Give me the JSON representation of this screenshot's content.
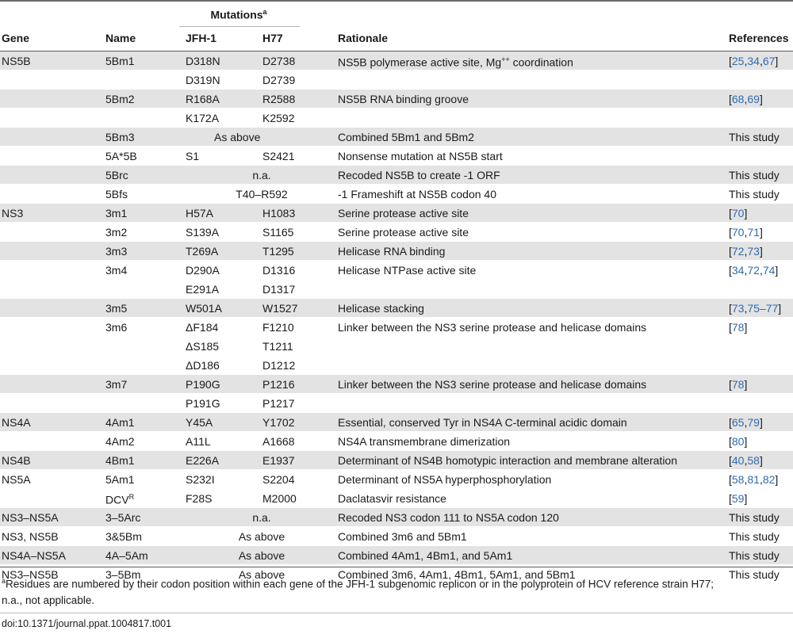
{
  "headers": {
    "mutations": "Mutations",
    "mutations_note": "a",
    "gene": "Gene",
    "name": "Name",
    "jfh1": "JFH-1",
    "h77": "H77",
    "rationale": "Rationale",
    "references": "References"
  },
  "rows": [
    {
      "shade": true,
      "gene": "NS5B",
      "name": "5Bm1",
      "jfh1": "D318N",
      "h77": "D2738",
      "rationale": "NS5B polymerase active site, Mg",
      "rationale_sup": "++",
      "rationale_tail": " coordination",
      "refs": [
        "25",
        "34",
        "67"
      ]
    },
    {
      "shade": false,
      "gene": "",
      "name": "",
      "jfh1": "D319N",
      "h77": "D2739",
      "rationale": "",
      "refs": []
    },
    {
      "shade": true,
      "gene": "",
      "name": "5Bm2",
      "jfh1": "R168A",
      "h77": "R2588",
      "rationale": "NS5B RNA binding groove",
      "refs": [
        "68",
        "69"
      ]
    },
    {
      "shade": false,
      "gene": "",
      "name": "",
      "jfh1": "K172A",
      "h77": "K2592",
      "rationale": "",
      "refs": []
    },
    {
      "shade": true,
      "gene": "",
      "name": "5Bm3",
      "span": "As above",
      "span_pos": "left",
      "rationale": "Combined 5Bm1 and 5Bm2",
      "ref_text": "This study"
    },
    {
      "shade": false,
      "gene": "",
      "name": "5A*5B",
      "jfh1": "S1",
      "h77": "S2421",
      "rationale": "Nonsense mutation at NS5B start",
      "refs": []
    },
    {
      "shade": true,
      "gene": "",
      "name": "5Brc",
      "span": "n.a.",
      "span_pos": "center",
      "rationale": "Recoded NS5B to create -1 ORF",
      "ref_text": "This study"
    },
    {
      "shade": false,
      "gene": "",
      "name": "5Bfs",
      "span": "T40–R592",
      "span_pos": "center",
      "rationale": "-1 Frameshift at NS5B codon 40",
      "ref_text": "This study"
    },
    {
      "shade": true,
      "gene": "NS3",
      "name": "3m1",
      "jfh1": "H57A",
      "h77": "H1083",
      "rationale": "Serine protease active site",
      "refs": [
        "70"
      ]
    },
    {
      "shade": false,
      "gene": "",
      "name": "3m2",
      "jfh1": "S139A",
      "h77": "S1165",
      "rationale": "Serine protease active site",
      "refs": [
        "70",
        "71"
      ]
    },
    {
      "shade": true,
      "gene": "",
      "name": "3m3",
      "jfh1": "T269A",
      "h77": "T1295",
      "rationale": "Helicase RNA binding",
      "refs": [
        "72",
        "73"
      ]
    },
    {
      "shade": false,
      "gene": "",
      "name": "3m4",
      "jfh1": "D290A",
      "h77": "D1316",
      "rationale": "Helicase NTPase active site",
      "refs": [
        "34",
        "72",
        "74"
      ]
    },
    {
      "shade": false,
      "gene": "",
      "name": "",
      "jfh1": "E291A",
      "h77": "D1317",
      "rationale": "",
      "refs": []
    },
    {
      "shade": true,
      "gene": "",
      "name": "3m5",
      "jfh1": "W501A",
      "h77": "W1527",
      "rationale": "Helicase stacking",
      "refs": [
        "73",
        "75–77"
      ],
      "ref_sep": [
        "",
        ","
      ]
    },
    {
      "shade": false,
      "gene": "",
      "name": "3m6",
      "jfh1": "ΔF184",
      "h77": "F1210",
      "rationale": "Linker between the NS3 serine protease and helicase domains",
      "refs": [
        "78"
      ]
    },
    {
      "shade": false,
      "gene": "",
      "name": "",
      "jfh1": "ΔS185",
      "h77": "T1211",
      "rationale": "",
      "refs": []
    },
    {
      "shade": false,
      "gene": "",
      "name": "",
      "jfh1": "ΔD186",
      "h77": "D1212",
      "rationale": "",
      "refs": []
    },
    {
      "shade": true,
      "gene": "",
      "name": "3m7",
      "jfh1": "P190G",
      "h77": "P1216",
      "rationale": "Linker between the NS3 serine protease and helicase domains",
      "refs": [
        "78"
      ]
    },
    {
      "shade": false,
      "gene": "",
      "name": "",
      "jfh1": "P191G",
      "h77": "P1217",
      "rationale": "",
      "refs": []
    },
    {
      "shade": true,
      "gene": "NS4A",
      "name": "4Am1",
      "jfh1": "Y45A",
      "h77": "Y1702",
      "rationale": "Essential, conserved Tyr in NS4A C-terminal acidic domain",
      "refs": [
        "65",
        "79"
      ]
    },
    {
      "shade": false,
      "gene": "",
      "name": "4Am2",
      "jfh1": "A11L",
      "h77": "A1668",
      "rationale": "NS4A transmembrane dimerization",
      "refs": [
        "80"
      ]
    },
    {
      "shade": true,
      "gene": "NS4B",
      "name": "4Bm1",
      "jfh1": "E226A",
      "h77": "E1937",
      "rationale": "Determinant of NS4B homotypic interaction and membrane alteration",
      "refs": [
        "40",
        "58"
      ]
    },
    {
      "shade": false,
      "gene": "NS5A",
      "name": "5Am1",
      "jfh1": "S232I",
      "h77": "S2204",
      "rationale": "Determinant of NS5A hyperphosphorylation",
      "refs": [
        "58",
        "81",
        "82"
      ]
    },
    {
      "shade": false,
      "gene": "",
      "name": "DCV",
      "name_sup": "R",
      "jfh1": "F28S",
      "h77": "M2000",
      "rationale": "Daclatasvir resistance",
      "refs": [
        "59"
      ]
    },
    {
      "shade": true,
      "gene": "NS3–NS5A",
      "name": "3–5Arc",
      "span": "n.a.",
      "span_pos": "center",
      "rationale": "Recoded NS3 codon 111 to NS5A codon 120",
      "ref_text": "This study"
    },
    {
      "shade": false,
      "gene": "NS3, NS5B",
      "name": "3&5Bm",
      "span": "As above",
      "span_pos": "center",
      "rationale": "Combined 3m6 and 5Bm1",
      "ref_text": "This study"
    },
    {
      "shade": true,
      "gene": "NS4A–NS5A",
      "name": "4A–5Am",
      "span": "As above",
      "span_pos": "center",
      "rationale": "Combined 4Am1, 4Bm1, and 5Am1",
      "ref_text": "This study"
    },
    {
      "shade": false,
      "gene": "NS3–NS5B",
      "name": "3–5Bm",
      "span": "As above",
      "span_pos": "center",
      "rationale": "Combined 3m6, 4Am1, 4Bm1, 5Am1, and 5Bm1",
      "ref_text": "This study"
    }
  ],
  "footnote": {
    "marker": "a",
    "text": "Residues are numbered by their codon position within each gene of the JFH-1 subgenomic replicon or in the polyprotein of HCV reference strain H77;",
    "text2": "n.a., not applicable."
  },
  "doi": "doi:10.1371/journal.ppat.1004817.t001",
  "colors": {
    "shade": "#e3e3e3",
    "link": "#2f6bb0"
  }
}
